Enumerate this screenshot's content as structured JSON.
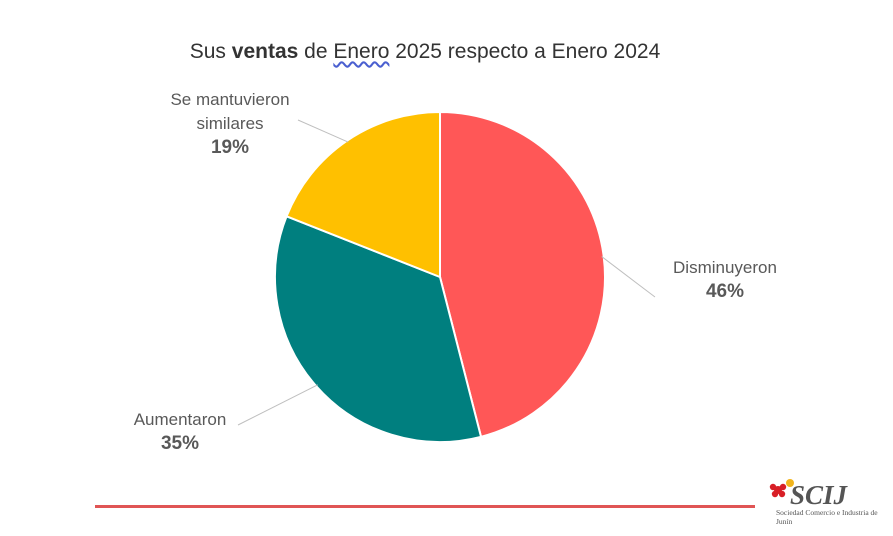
{
  "title": {
    "part1": "Sus ",
    "bold": "ventas",
    "part2": " de ",
    "underlined": "Enero",
    "part3": " 2025 respecto a Enero 2024"
  },
  "chart_data": {
    "type": "pie",
    "title": "Sus ventas de Enero 2025 respecto a Enero 2024",
    "slices": [
      {
        "label": "Disminuyeron",
        "value": 46,
        "value_label": "46%",
        "color": "#FF5757"
      },
      {
        "label": "Aumentaron",
        "value": 35,
        "value_label": "35%",
        "color": "#007F7F"
      },
      {
        "label": "Se mantuvieron similares",
        "value": 19,
        "value_label": "19%",
        "color": "#FFC000"
      }
    ],
    "start_direction": "12 o'clock, clockwise",
    "legend": "none"
  },
  "footer": {
    "rule_color": "#E05555"
  },
  "logo": {
    "text": "SCIJ",
    "subtitle": "Sociedad Comercio e Industria de Junín",
    "icon": "red-yellow-flower-icon"
  }
}
